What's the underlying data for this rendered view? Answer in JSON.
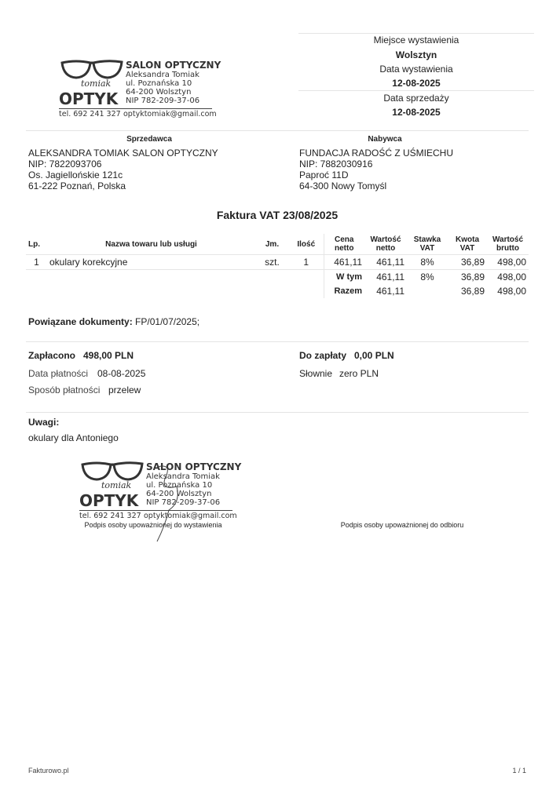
{
  "header": {
    "place_label": "Miejsce wystawienia",
    "place": "Wolsztyn",
    "issue_date_label": "Data wystawienia",
    "issue_date": "12-08-2025",
    "sale_date_label": "Data sprzedaży",
    "sale_date": "12-08-2025"
  },
  "logo": {
    "title": "SALON OPTYCZNY",
    "owner": "Aleksandra Tomiak",
    "street": "ul. Poznańska 10",
    "city": "64-200 Wolsztyn",
    "nip": "NIP 782-209-37-06",
    "brand_script": "tomiak",
    "brand": "OPTYK",
    "phone": "tel. 692 241 327",
    "email": "optyktomiak@gmail.com"
  },
  "seller": {
    "label": "Sprzedawca",
    "name": "ALEKSANDRA TOMIAK SALON OPTYCZNY",
    "nip": "NIP: 7822093706",
    "street": "Os. Jagiellońskie 121c",
    "city": "61-222 Poznań, Polska"
  },
  "buyer": {
    "label": "Nabywca",
    "name": "FUNDACJA RADOŚĆ Z UŚMIECHU",
    "nip": "NIP: 7882030916",
    "street": "Paproć 11D",
    "city": "64-300 Nowy Tomyśl"
  },
  "title": "Faktura VAT 23/08/2025",
  "table": {
    "headers": [
      "Lp.",
      "Nazwa towaru lub usługi",
      "Jm.",
      "Ilość",
      "Cena netto",
      "Wartość netto",
      "Stawka VAT",
      "Kwota VAT",
      "Wartość brutto"
    ],
    "rows": [
      [
        "1",
        "okulary korekcyjne",
        "szt.",
        "1",
        "461,11",
        "461,11",
        "8%",
        "36,89",
        "498,00"
      ]
    ],
    "wtym": {
      "label": "W tym",
      "netto": "461,11",
      "rate": "8%",
      "vat": "36,89",
      "brutto": "498,00"
    },
    "razem": {
      "label": "Razem",
      "netto": "461,11",
      "rate": "",
      "vat": "36,89",
      "brutto": "498,00"
    }
  },
  "related": {
    "label": "Powiązane dokumenty:",
    "value": "FP/01/07/2025;"
  },
  "payment": {
    "paid_label": "Zapłacono",
    "paid": "498,00 PLN",
    "date_label": "Data płatności",
    "date": "08-08-2025",
    "method_label": "Sposób płatności",
    "method": "przelew",
    "due_label": "Do zapłaty",
    "due": "0,00 PLN",
    "words_label": "Słownie",
    "words": "zero PLN"
  },
  "notes": {
    "label": "Uwagi:",
    "text": "okulary dla Antoniego"
  },
  "signatures": {
    "issuer": "Podpis osoby upoważnionej do wystawienia",
    "receiver": "Podpis osoby upoważnionej do odbioru"
  },
  "footer": {
    "left": "Fakturowo.pl",
    "page": "1 / 1"
  }
}
